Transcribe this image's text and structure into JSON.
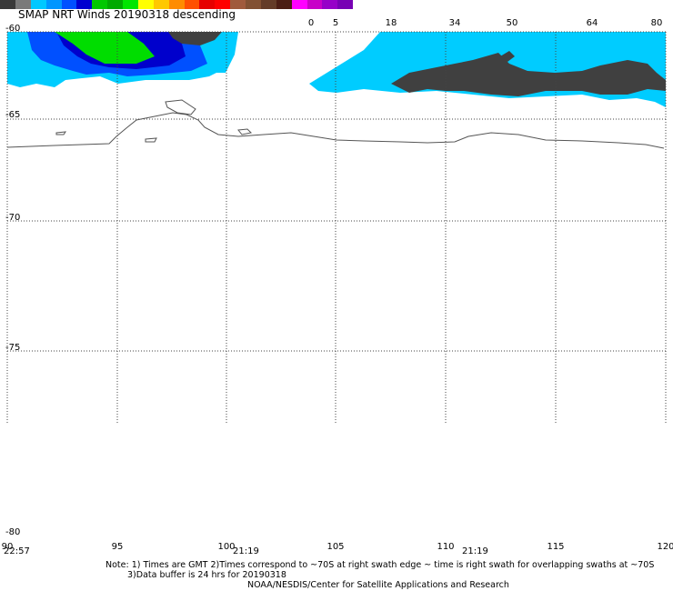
{
  "title": "SMAP NRT Winds  20190318 descending",
  "colorbar": {
    "labels": [
      "0",
      "5",
      "18",
      "34",
      "50",
      "64",
      "80"
    ],
    "colors": [
      "#3a3a3a",
      "#7a7a7a",
      "#00c8ff",
      "#0096ff",
      "#0050ff",
      "#0000d0",
      "#00c800",
      "#00aa00",
      "#00e600",
      "#ffff00",
      "#ffc800",
      "#ff8c00",
      "#ff5000",
      "#e60000",
      "#ff0000",
      "#a05a3c",
      "#825032",
      "#643c28",
      "#4b1e14",
      "#ff00ff",
      "#c800c8",
      "#9600c8",
      "#7800b4"
    ]
  },
  "map": {
    "lat_labels": [
      "-60",
      "-65",
      "-70",
      "-75",
      "-80"
    ],
    "lon_labels": [
      "90",
      "95",
      "100",
      "105",
      "110",
      "115",
      "120"
    ],
    "time_labels": [
      "22:57",
      "21:19",
      "21:19"
    ],
    "swath_colors": {
      "cyan": "#00ccff",
      "blue_light": "#1aa0ff",
      "blue": "#0050ff",
      "dark_blue": "#0000cc",
      "green": "#00dd00",
      "land_ice": "#404040",
      "coast": "#555555"
    }
  },
  "notes": {
    "line1": "Note: 1) Times are GMT 2)Times correspond to ~70S at right swath edge ~ time is right swath for overlapping swaths at ~70S",
    "line2": "3)Data buffer is 24 hrs for 20190318",
    "line3": "NOAA/NESDIS/Center for Satellite Applications and Research"
  }
}
